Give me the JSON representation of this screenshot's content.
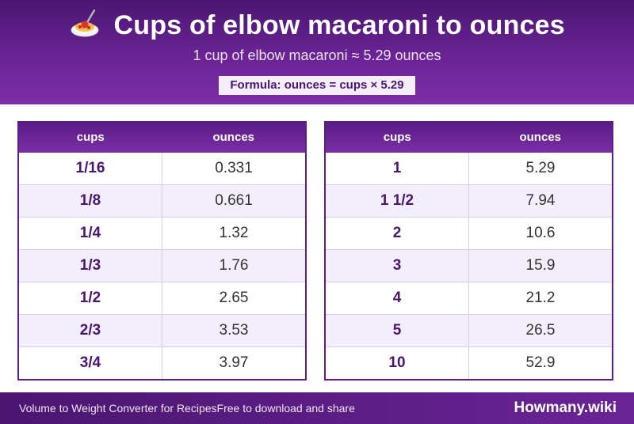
{
  "header": {
    "title": "Cups of elbow macaroni to ounces",
    "icon": "spaghetti-icon",
    "subtitle": "1 cup of elbow macaroni ≈ 5.29 ounces",
    "formula": "Formula: ounces = cups × 5.29"
  },
  "tables": {
    "headers": {
      "cups": "cups",
      "ounces": "ounces"
    },
    "left": [
      {
        "cups": "1/16",
        "ounces": "0.331"
      },
      {
        "cups": "1/8",
        "ounces": "0.661"
      },
      {
        "cups": "1/4",
        "ounces": "1.32"
      },
      {
        "cups": "1/3",
        "ounces": "1.76"
      },
      {
        "cups": "1/2",
        "ounces": "2.65"
      },
      {
        "cups": "2/3",
        "ounces": "3.53"
      },
      {
        "cups": "3/4",
        "ounces": "3.97"
      }
    ],
    "right": [
      {
        "cups": "1",
        "ounces": "5.29"
      },
      {
        "cups": "1 1/2",
        "ounces": "7.94"
      },
      {
        "cups": "2",
        "ounces": "10.6"
      },
      {
        "cups": "3",
        "ounces": "15.9"
      },
      {
        "cups": "4",
        "ounces": "21.2"
      },
      {
        "cups": "5",
        "ounces": "26.5"
      },
      {
        "cups": "10",
        "ounces": "52.9"
      }
    ]
  },
  "footer": {
    "left_text": "Volume to Weight Converter for RecipesFree to download and share",
    "brand": "Howmany.wiki"
  },
  "colors": {
    "primary": "#6a2496",
    "dark": "#4a1670",
    "row_alt": "#f3eefb"
  }
}
